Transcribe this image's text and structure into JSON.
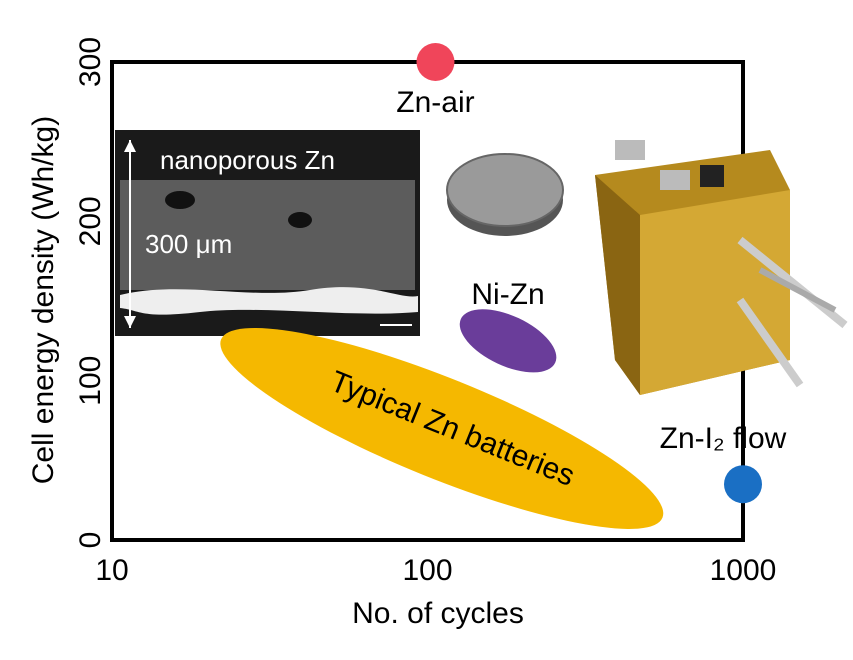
{
  "chart_data": {
    "type": "scatter",
    "xlabel": "No. of cycles",
    "ylabel": "Cell energy density (Wh/kg)",
    "xscale": "log",
    "xlim": [
      10,
      1000
    ],
    "ylim": [
      0,
      300
    ],
    "xticks": [
      10,
      100,
      1000
    ],
    "yticks": [
      0,
      100,
      200,
      300
    ],
    "series": [
      {
        "name": "Zn-air",
        "color": "#f0455a",
        "x": [
          106
        ],
        "values": [
          300
        ]
      },
      {
        "name": "Zn-I₂ flow",
        "color": "#1a6fc4",
        "x": [
          1000
        ],
        "values": [
          35
        ]
      }
    ],
    "regions": [
      {
        "name": "Ni-Zn",
        "color": "#6a3d9a",
        "x": 180,
        "y": 125
      },
      {
        "name": "Typical Zn batteries",
        "color": "#f5b800",
        "x": 111,
        "y": 70
      }
    ],
    "annotations": [
      "nanoporous Zn",
      "300 μm"
    ]
  }
}
